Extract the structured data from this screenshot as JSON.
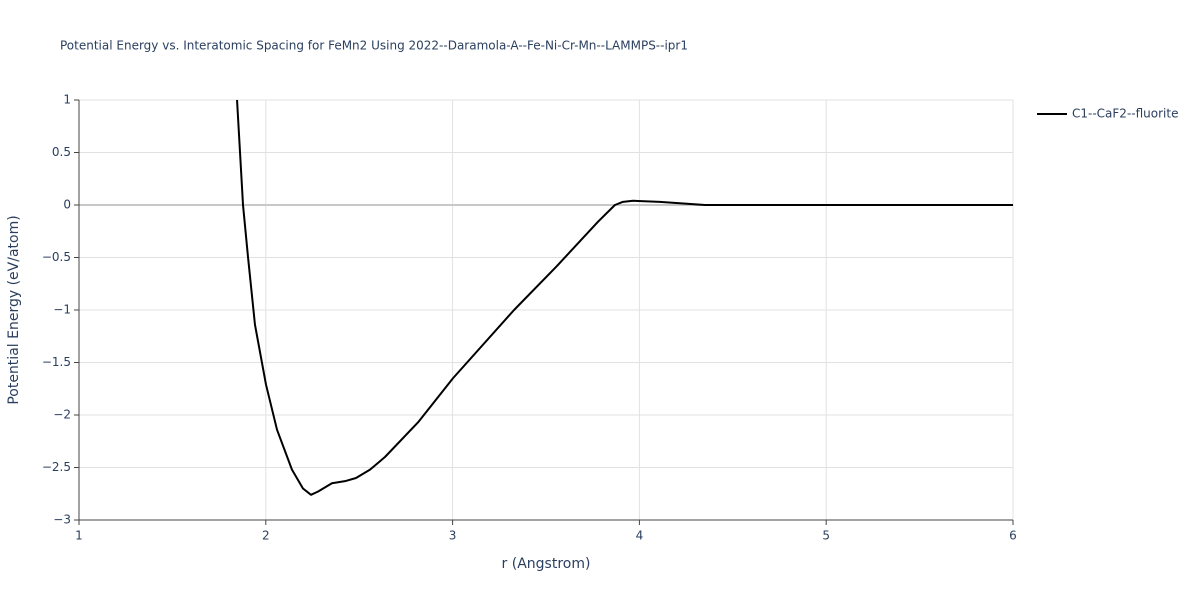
{
  "chart_data": {
    "type": "line",
    "title": "Potential Energy vs. Interatomic Spacing for FeMn2 Using 2022--Daramola-A--Fe-Ni-Cr-Mn--LAMMPS--ipr1",
    "x_label": "r (Angstrom)",
    "y_label": "Potential Energy (eV/atom)",
    "xlim": [
      1,
      6
    ],
    "xticks": [
      1,
      2,
      3,
      4,
      5,
      6
    ],
    "ylim": [
      -3,
      1
    ],
    "yticks": [
      {
        "value": -3,
        "label": "−3"
      },
      {
        "value": -2.5,
        "label": "−2.5"
      },
      {
        "value": -2,
        "label": "−2"
      },
      {
        "value": -1.5,
        "label": "−1.5"
      },
      {
        "value": -1,
        "label": "−1"
      },
      {
        "value": -0.5,
        "label": "−0.5"
      },
      0,
      0.5,
      1
    ],
    "grid": true,
    "legend": "top-right",
    "series": [
      {
        "name": "C1--CaF2--fluorite",
        "color": "#000000",
        "x": [
          1.846,
          1.878,
          1.905,
          1.942,
          2.001,
          2.06,
          2.14,
          2.199,
          2.242,
          2.279,
          2.354,
          2.424,
          2.483,
          2.558,
          2.638,
          2.815,
          3.002,
          3.329,
          3.559,
          3.778,
          3.869,
          3.912,
          3.966,
          4.11,
          4.351,
          6
        ],
        "values": [
          1.0,
          0,
          -0.5,
          -1.14,
          -1.71,
          -2.14,
          -2.52,
          -2.7,
          -2.76,
          -2.73,
          -2.65,
          -2.63,
          -2.6,
          -2.52,
          -2.4,
          -2.07,
          -1.65,
          -1.0,
          -0.58,
          -0.16,
          0,
          0.03,
          0.04,
          0.03,
          0,
          0
        ]
      }
    ]
  }
}
